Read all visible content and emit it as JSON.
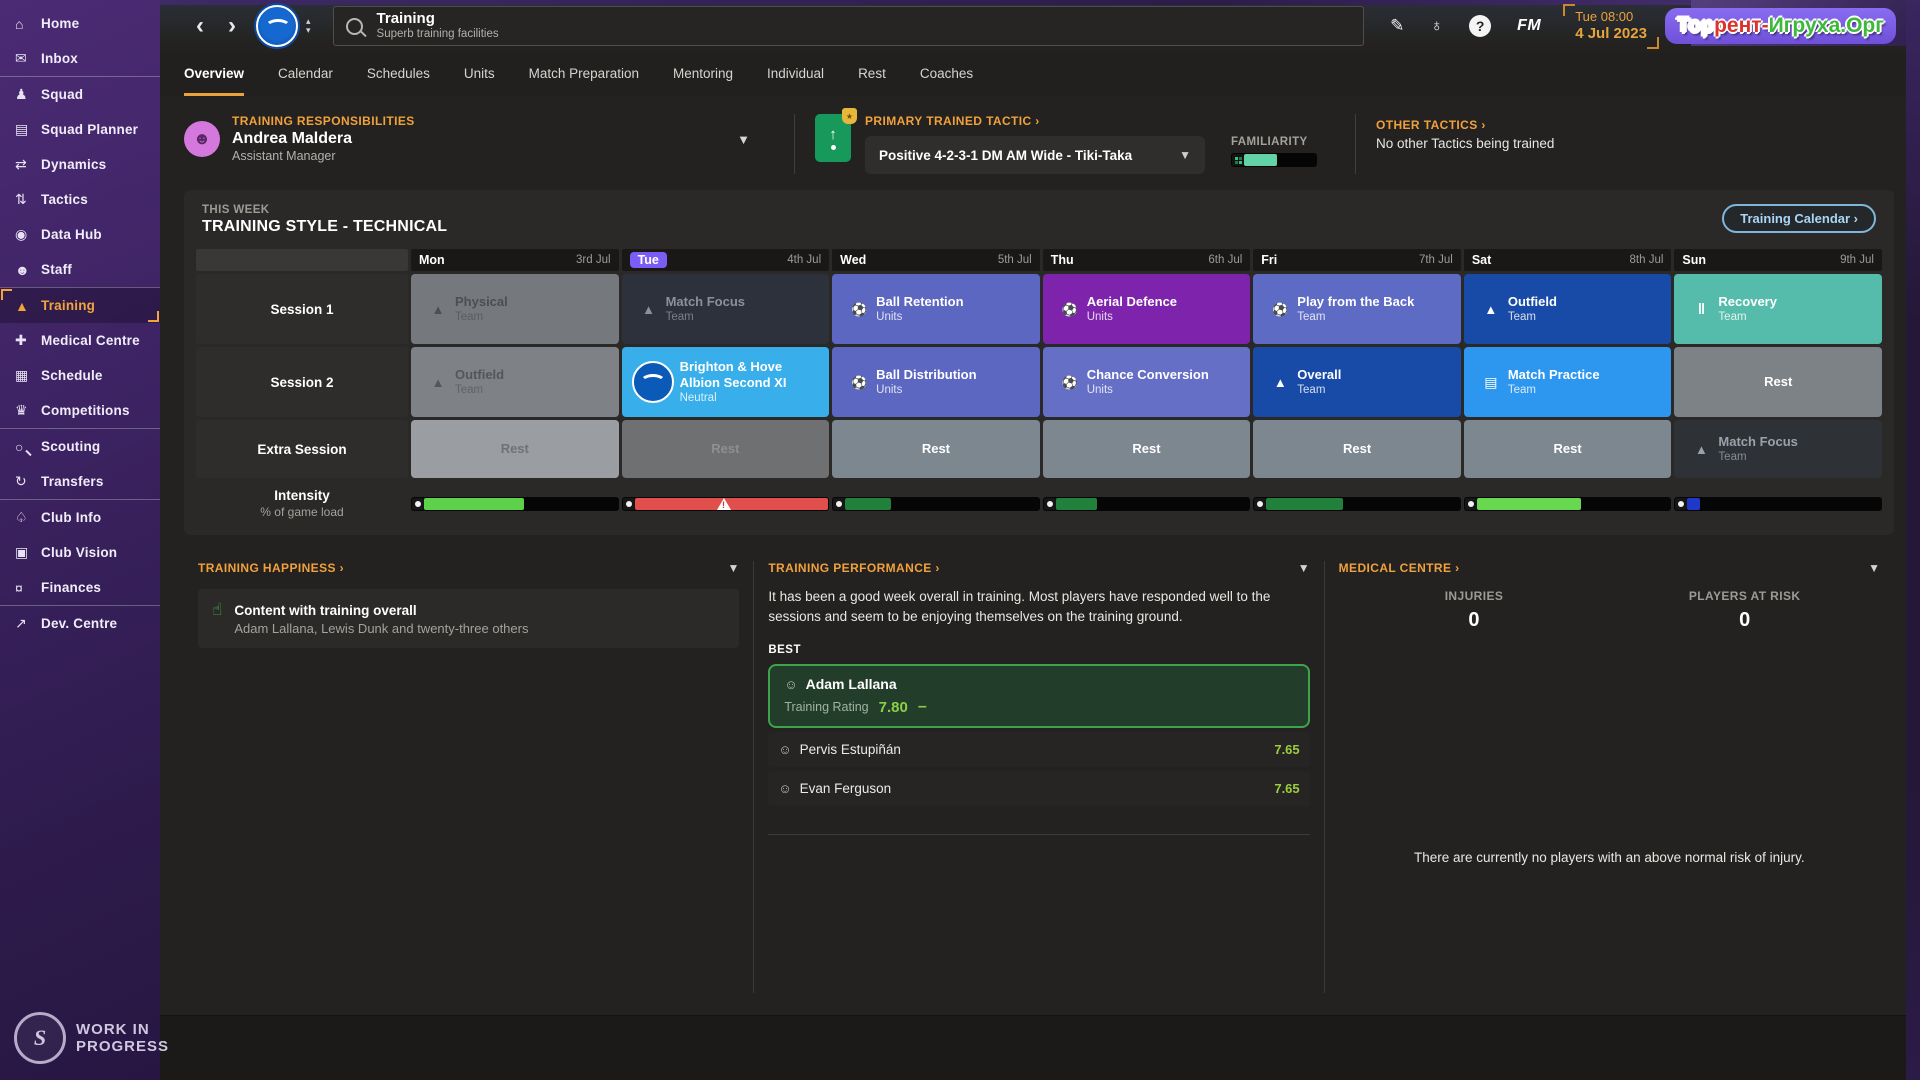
{
  "sidebar": {
    "items": [
      {
        "name": "sidebar-item-home",
        "label": "Home",
        "glyph": "⌂",
        "icon_name": "home-icon",
        "active": false,
        "div": false
      },
      {
        "name": "sidebar-item-inbox",
        "label": "Inbox",
        "glyph": "✉",
        "icon_name": "inbox-icon",
        "active": false,
        "div": false
      },
      {
        "name": "sidebar-item-squad",
        "label": "Squad",
        "glyph": "♟",
        "icon_name": "shirt-icon",
        "active": false,
        "div": true
      },
      {
        "name": "sidebar-item-squad-planner",
        "label": "Squad Planner",
        "glyph": "▤",
        "icon_name": "clipboard-icon",
        "active": false,
        "div": false
      },
      {
        "name": "sidebar-item-dynamics",
        "label": "Dynamics",
        "glyph": "⇄",
        "icon_name": "dynamics-icon",
        "active": false,
        "div": false
      },
      {
        "name": "sidebar-item-tactics",
        "label": "Tactics",
        "glyph": "⇅",
        "icon_name": "tactics-icon",
        "active": false,
        "div": false
      },
      {
        "name": "sidebar-item-data-hub",
        "label": "Data Hub",
        "glyph": "◉",
        "icon_name": "data-hub-icon",
        "active": false,
        "div": false
      },
      {
        "name": "sidebar-item-staff",
        "label": "Staff",
        "glyph": "☻",
        "icon_name": "staff-icon",
        "active": false,
        "div": false
      },
      {
        "name": "sidebar-item-training",
        "label": "Training",
        "glyph": "▲",
        "icon_name": "training-cones-icon",
        "active": true,
        "div": true
      },
      {
        "name": "sidebar-item-medical-centre",
        "label": "Medical Centre",
        "glyph": "✚",
        "icon_name": "medical-cross-icon",
        "active": false,
        "div": false
      },
      {
        "name": "sidebar-item-schedule",
        "label": "Schedule",
        "glyph": "▦",
        "icon_name": "calendar-icon",
        "active": false,
        "div": false
      },
      {
        "name": "sidebar-item-competitions",
        "label": "Competitions",
        "glyph": "♛",
        "icon_name": "trophy-icon",
        "active": false,
        "div": false
      },
      {
        "name": "sidebar-item-scouting",
        "label": "Scouting",
        "glyph": "○",
        "icon_name": "scouting-icon",
        "active": false,
        "div": true
      },
      {
        "name": "sidebar-item-transfers",
        "label": "Transfers",
        "glyph": "↻",
        "icon_name": "transfers-icon",
        "active": false,
        "div": false
      },
      {
        "name": "sidebar-item-club-info",
        "label": "Club Info",
        "glyph": "♤",
        "icon_name": "shield-icon",
        "active": false,
        "div": true
      },
      {
        "name": "sidebar-item-club-vision",
        "label": "Club Vision",
        "glyph": "▣",
        "icon_name": "briefcase-icon",
        "active": false,
        "div": false
      },
      {
        "name": "sidebar-item-finances",
        "label": "Finances",
        "glyph": "¤",
        "icon_name": "banknote-icon",
        "active": false,
        "div": false
      },
      {
        "name": "sidebar-item-dev-centre",
        "label": "Dev. Centre",
        "glyph": "↗",
        "icon_name": "trend-icon",
        "active": false,
        "div": true
      }
    ],
    "footer_line1": "WORK IN",
    "footer_line2": "PROGRESS",
    "footer_logo_letter": "S"
  },
  "header": {
    "back_glyph": "‹",
    "forward_glyph": "›",
    "crest_up": "▴",
    "crest_down": "▾",
    "title": "Training",
    "subtitle": "Superb training facilities",
    "pencil_glyph": "✎",
    "globe_glyph": "♁",
    "help_glyph": "?",
    "fm_label": "FM",
    "clock": "Tue 08:00",
    "date": "4 Jul 2023",
    "watermark": [
      {
        "text": "Тор",
        "style": "color:#ffffff"
      },
      {
        "text": "рент-",
        "style": "color:#d9342b"
      },
      {
        "text": "Игруха.Орг",
        "style": "color:#3db83a"
      }
    ]
  },
  "tabs": [
    {
      "name": "tab-overview",
      "label": "Overview",
      "active": true
    },
    {
      "name": "tab-calendar",
      "label": "Calendar",
      "active": false
    },
    {
      "name": "tab-schedules",
      "label": "Schedules",
      "active": false
    },
    {
      "name": "tab-units",
      "label": "Units",
      "active": false
    },
    {
      "name": "tab-match-preparation",
      "label": "Match Preparation",
      "active": false
    },
    {
      "name": "tab-mentoring",
      "label": "Mentoring",
      "active": false
    },
    {
      "name": "tab-individual",
      "label": "Individual",
      "active": false
    },
    {
      "name": "tab-rest",
      "label": "Rest",
      "active": false
    },
    {
      "name": "tab-coaches",
      "label": "Coaches",
      "active": false
    }
  ],
  "responsibilities": {
    "heading": "TRAINING RESPONSIBILITIES",
    "name": "Andrea Maldera",
    "role": "Assistant Manager",
    "avatar_glyph": "☻",
    "chevron": "▼"
  },
  "primary_tactic": {
    "heading": "PRIMARY TRAINED TACTIC ›",
    "card_arrow": "↑",
    "badge_glyph": "★",
    "value": "Positive 4-2-3-1 DM AM Wide - Tiki-Taka",
    "chevron": "▼",
    "familiarity_label": "FAMILIARITY",
    "familiarity_pct": 38,
    "familiarity_fill_style": "width:38%;background:#63d3a7"
  },
  "other_tactics": {
    "heading": "OTHER TACTICS ›",
    "value": "No other Tactics being trained"
  },
  "week": {
    "eyebrow": "THIS WEEK",
    "title": "TRAINING STYLE - TECHNICAL",
    "calendar_button": "Training Calendar ›",
    "labels": {
      "session1": "Session 1",
      "session2": "Session 2",
      "extra": "Extra Session",
      "intensity": "Intensity",
      "intensity_sub": "% of game load"
    },
    "days": [
      {
        "name_attr": "day-header-mon",
        "name": "Mon",
        "date": "3rd Jul",
        "today": false
      },
      {
        "name_attr": "day-header-tue",
        "name": "Tue",
        "date": "4th Jul",
        "today": true
      },
      {
        "name_attr": "day-header-wed",
        "name": "Wed",
        "date": "5th Jul",
        "today": false
      },
      {
        "name_attr": "day-header-thu",
        "name": "Thu",
        "date": "6th Jul",
        "today": false
      },
      {
        "name_attr": "day-header-fri",
        "name": "Fri",
        "date": "7th Jul",
        "today": false
      },
      {
        "name_attr": "day-header-sat",
        "name": "Sat",
        "date": "8th Jul",
        "today": false
      },
      {
        "name_attr": "day-header-sun",
        "name": "Sun",
        "date": "9th Jul",
        "today": false
      }
    ],
    "session1": [
      {
        "name": "session1-mon",
        "title": "Physical",
        "sub": "Team",
        "icon": "cone",
        "icon_name": "cone-icon",
        "style": "background:#75787c;--txt:#4b4e52;--sub:#5a5d61"
      },
      {
        "name": "session1-tue",
        "title": "Match Focus",
        "sub": "Team",
        "icon": "cone",
        "icon_name": "cone-icon",
        "style": "background:#2c313b;--txt:#8a919c;--sub:#788089"
      },
      {
        "name": "session1-wed",
        "title": "Ball Retention",
        "sub": "Units",
        "icon": "player",
        "icon_name": "player-icon",
        "style": "background:#5b67c1"
      },
      {
        "name": "session1-thu",
        "title": "Aerial Defence",
        "sub": "Units",
        "icon": "tackle",
        "icon_name": "sliding-tackle-icon",
        "style": "background:#7d23ac"
      },
      {
        "name": "session1-fri",
        "title": "Play from the Back",
        "sub": "Team",
        "icon": "player",
        "icon_name": "player-icon",
        "style": "background:#5e6bc4"
      },
      {
        "name": "session1-sat",
        "title": "Outfield",
        "sub": "Team",
        "icon": "cone",
        "icon_name": "cone-icon",
        "style": "background:#184ba8"
      },
      {
        "name": "session1-sun",
        "title": "Recovery",
        "sub": "Team",
        "icon": "recovery",
        "icon_name": "recovery-icon",
        "style": "background:#55bcab"
      }
    ],
    "session2": [
      {
        "name": "session2-mon",
        "title": "Outfield",
        "sub": "Team",
        "icon": "cone",
        "icon_name": "cone-icon",
        "style": "background:#7e8185;--txt:#53565a;--sub:#5f6266"
      },
      {
        "name": "session2-tue",
        "title": "Brighton & Hove Albion Second XI",
        "sub": "Neutral",
        "icon": "crest",
        "icon_name": "brighton-crest-icon",
        "style": "background:#38aeea"
      },
      {
        "name": "session2-wed",
        "title": "Ball Distribution",
        "sub": "Units",
        "icon": "player",
        "icon_name": "player-icon",
        "style": "background:#5b67c1"
      },
      {
        "name": "session2-thu",
        "title": "Chance Conversion",
        "sub": "Units",
        "icon": "player",
        "icon_name": "player-icon",
        "style": "background:#666fc6"
      },
      {
        "name": "session2-fri",
        "title": "Overall",
        "sub": "Team",
        "icon": "cone",
        "icon_name": "cone-icon",
        "style": "background:#184ba8"
      },
      {
        "name": "session2-sat",
        "title": "Match Practice",
        "sub": "Team",
        "icon": "bib",
        "icon_name": "bib-icon",
        "style": "background:#2d96ee"
      },
      {
        "name": "session2-sun",
        "title": "Rest",
        "sub": "",
        "icon": "none",
        "icon_name": "no-icon",
        "style": "background:#7d8287"
      }
    ],
    "extra": [
      {
        "name": "extra-mon",
        "title": "Rest",
        "sub": "",
        "icon": "none",
        "icon_name": "no-icon",
        "style": "background:#9a9ea2;--txt:#6f7276"
      },
      {
        "name": "extra-tue",
        "title": "Rest",
        "sub": "",
        "icon": "none",
        "icon_name": "no-icon",
        "style": "background:#6f7072;--txt:#8e8f91"
      },
      {
        "name": "extra-wed",
        "title": "Rest",
        "sub": "",
        "icon": "none",
        "icon_name": "no-icon",
        "style": "background:#7d8790"
      },
      {
        "name": "extra-thu",
        "title": "Rest",
        "sub": "",
        "icon": "none",
        "icon_name": "no-icon",
        "style": "background:#7d8790"
      },
      {
        "name": "extra-fri",
        "title": "Rest",
        "sub": "",
        "icon": "none",
        "icon_name": "no-icon",
        "style": "background:#7d8790"
      },
      {
        "name": "extra-sat",
        "title": "Rest",
        "sub": "",
        "icon": "none",
        "icon_name": "no-icon",
        "style": "background:#7d8790"
      },
      {
        "name": "extra-sun",
        "title": "Match Focus",
        "sub": "Team",
        "icon": "cone",
        "icon_name": "cone-icon",
        "style": "background:#2e3237;--txt:#9aa1ab;--sub:#858c96"
      }
    ],
    "intensity": [
      {
        "name": "intensity-mon",
        "pct": 48,
        "color": "#5ed14a",
        "fill_style": "width:48%;background:#5ed14a",
        "warning": false
      },
      {
        "name": "intensity-tue",
        "pct": 93,
        "color": "#e04f4b",
        "fill_style": "width:93%;background:#e04f4b",
        "warning": true
      },
      {
        "name": "intensity-wed",
        "pct": 22,
        "color": "#20803c",
        "fill_style": "width:22%;background:#20803c",
        "warning": false
      },
      {
        "name": "intensity-thu",
        "pct": 20,
        "color": "#20803c",
        "fill_style": "width:20%;background:#20803c",
        "warning": false
      },
      {
        "name": "intensity-fri",
        "pct": 37,
        "color": "#20803c",
        "fill_style": "width:37%;background:#20803c",
        "warning": false
      },
      {
        "name": "intensity-sat",
        "pct": 50,
        "color": "#67d84f",
        "fill_style": "width:50%;background:#67d84f",
        "warning": false
      },
      {
        "name": "intensity-sun",
        "pct": 6,
        "color": "#2038c8",
        "fill_style": "width:6%;background:#2038c8",
        "warning": false
      }
    ]
  },
  "happiness": {
    "heading": "TRAINING HAPPINESS ›",
    "chevron": "▼",
    "thumb_glyph": "☝",
    "item_title": "Content with training overall",
    "item_sub": "Adam Lallana, Lewis Dunk and twenty-three others"
  },
  "performance": {
    "heading": "TRAINING PERFORMANCE ›",
    "chevron": "▼",
    "summary": "It has been a good week overall in training. Most players have responded well to the sessions and seem to be enjoying themselves on the training ground.",
    "best_label": "BEST",
    "face_glyph": "☺",
    "best": {
      "name": "Adam Lallana",
      "rating_label": "Training Rating",
      "rating": "7.80",
      "trend": "–"
    },
    "others": [
      {
        "name": "Pervis Estupiñán",
        "rating": "7.65"
      },
      {
        "name": "Evan Ferguson",
        "rating": "7.65"
      }
    ]
  },
  "medical": {
    "heading": "MEDICAL CENTRE ›",
    "chevron": "▼",
    "injuries_label": "INJURIES",
    "injuries_value": "0",
    "risk_label": "PLAYERS AT RISK",
    "risk_value": "0",
    "note": "There are currently no players with an above normal risk of injury."
  },
  "colors": {
    "accent_orange": "#f0a13c",
    "sidebar_purple": "#3d2363",
    "today_badge": "#7b5cf5",
    "rating_green": "#8ad046",
    "best_card_border": "#3fa34d",
    "calendar_button_blue": "#a9d6f5"
  }
}
